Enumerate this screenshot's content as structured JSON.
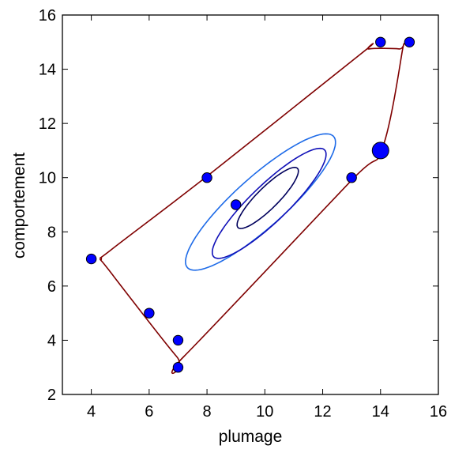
{
  "chart_data": {
    "type": "scatter",
    "title": "",
    "xlabel": "plumage",
    "ylabel": "comportement",
    "xlim": [
      3,
      16
    ],
    "ylim": [
      2,
      16
    ],
    "xticks": [
      4,
      6,
      8,
      10,
      12,
      14,
      16
    ],
    "yticks": [
      2,
      4,
      6,
      8,
      10,
      12,
      14,
      16
    ],
    "grid": false,
    "points": [
      {
        "x": 4,
        "y": 7,
        "size": 1
      },
      {
        "x": 6,
        "y": 5,
        "size": 1
      },
      {
        "x": 7,
        "y": 4,
        "size": 1
      },
      {
        "x": 7,
        "y": 3,
        "size": 1
      },
      {
        "x": 8,
        "y": 10,
        "size": 1
      },
      {
        "x": 9,
        "y": 9,
        "size": 1
      },
      {
        "x": 13,
        "y": 10,
        "size": 1
      },
      {
        "x": 14,
        "y": 15,
        "size": 1
      },
      {
        "x": 15,
        "y": 15,
        "size": 1
      },
      {
        "x": 14,
        "y": 11,
        "size": 2
      }
    ],
    "point_color": "#0000ff",
    "outer_contour": {
      "color": "#7f0000",
      "path": [
        [
          4.35,
          7.0
        ],
        [
          4.7,
          7.35
        ],
        [
          8.0,
          10.05
        ],
        [
          13.3,
          14.55
        ],
        [
          13.6,
          14.75
        ],
        [
          14.65,
          14.75
        ],
        [
          14.75,
          14.65
        ],
        [
          14.05,
          11.05
        ],
        [
          12.95,
          9.85
        ],
        [
          7.2,
          3.4
        ],
        [
          6.95,
          3.4
        ],
        [
          4.6,
          6.6
        ]
      ]
    },
    "contours": [
      {
        "color": "#1e6be8",
        "cx": 9.85,
        "cy": 9.1,
        "major": 3.5,
        "minor": 0.9,
        "angle_deg": 44
      },
      {
        "color": "#1010b8",
        "cx": 10.15,
        "cy": 9.05,
        "major": 2.75,
        "minor": 0.66,
        "angle_deg": 46
      },
      {
        "color": "#00005c",
        "cx": 10.1,
        "cy": 9.25,
        "major": 1.5,
        "minor": 0.38,
        "angle_deg": 47
      }
    ]
  }
}
